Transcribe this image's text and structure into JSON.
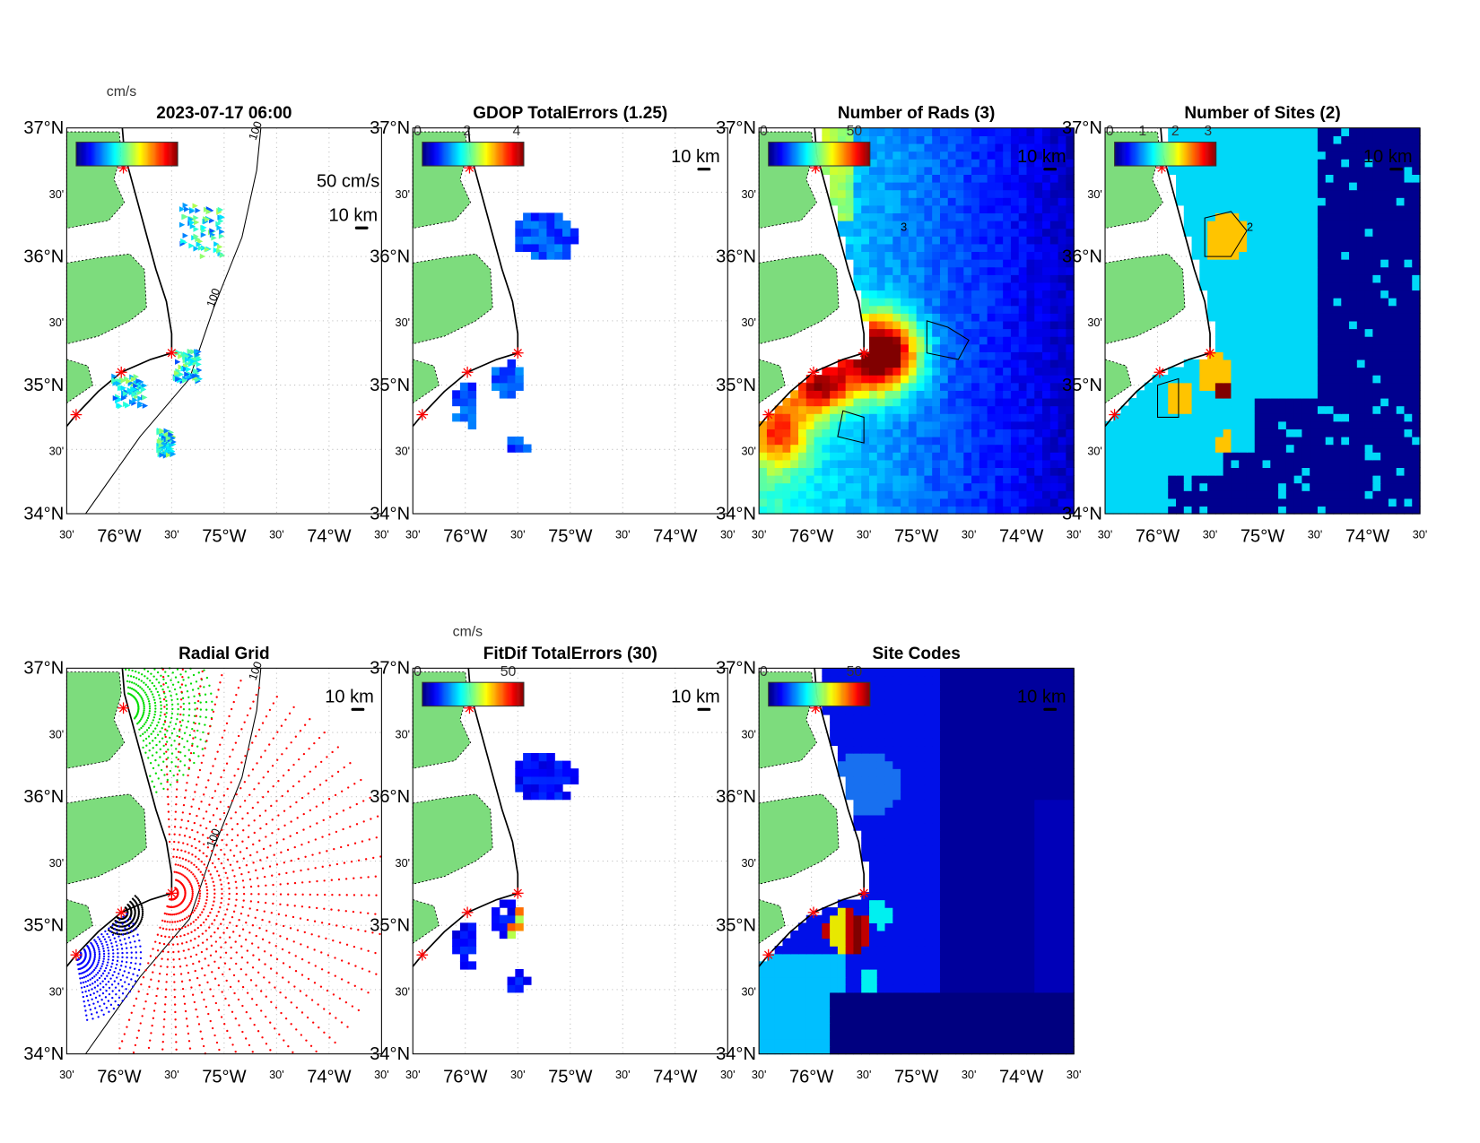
{
  "axes": {
    "y_labels": [
      "37°N",
      "30'",
      "36°N",
      "30'",
      "35°N",
      "30'",
      "34°N"
    ],
    "x_labels": [
      "30'",
      "76°W",
      "30'",
      "75°W",
      "30'",
      "74°W",
      "30'"
    ]
  },
  "colors": {
    "land": "#7ddc7d",
    "site": "#ff0000",
    "grid": "#bbbbbb"
  },
  "panels": [
    {
      "id": "surface-currents",
      "title": "2023-07-17 06:00",
      "cbar_unit": "cm/s",
      "cbar_ticks": [],
      "cbar_range": [
        0,
        50
      ],
      "scale_label": "50 cm/s",
      "km_label": "10 km",
      "contour_label": "100",
      "kind": "vectors"
    },
    {
      "id": "gdop",
      "title": "GDOP TotalErrors (1.25)",
      "cbar_unit": "",
      "cbar_ticks": [
        "0",
        "2",
        "4"
      ],
      "cbar_range": [
        0,
        4.1
      ],
      "km_label": "10 km",
      "kind": "gdop"
    },
    {
      "id": "num-rads",
      "title": "Number of Rads (3)",
      "cbar_unit": "",
      "cbar_ticks": [
        "0",
        "50"
      ],
      "cbar_range": [
        0,
        56
      ],
      "km_label": "10 km",
      "contour_label": "3",
      "kind": "rads"
    },
    {
      "id": "num-sites",
      "title": "Number of Sites (2)",
      "cbar_unit": "",
      "cbar_ticks": [
        "0",
        "1",
        "2",
        "3"
      ],
      "cbar_range": [
        0,
        3.1
      ],
      "km_label": "10 km",
      "contour_label": "2",
      "kind": "sites"
    },
    {
      "id": "radial-grid",
      "title": "Radial Grid",
      "cbar_unit": "",
      "cbar_ticks": [],
      "km_label": "10 km",
      "contour_label": "100",
      "kind": "radial"
    },
    {
      "id": "fitdif",
      "title": "FitDif TotalErrors (30)",
      "cbar_unit": "cm/s",
      "cbar_ticks": [
        "0",
        "50"
      ],
      "cbar_range": [
        0,
        56
      ],
      "km_label": "10 km",
      "kind": "fitdif"
    },
    {
      "id": "site-codes",
      "title": "Site Codes",
      "cbar_unit": "",
      "cbar_ticks": [
        "0",
        "50"
      ],
      "cbar_range": [
        0,
        56
      ],
      "km_label": "10 km",
      "kind": "codes"
    }
  ],
  "sites": [
    {
      "lon": -75.96,
      "lat": 36.69
    },
    {
      "lon": -75.5,
      "lat": 35.25
    },
    {
      "lon": -75.98,
      "lat": 35.1
    },
    {
      "lon": -76.41,
      "lat": 34.77
    }
  ]
}
